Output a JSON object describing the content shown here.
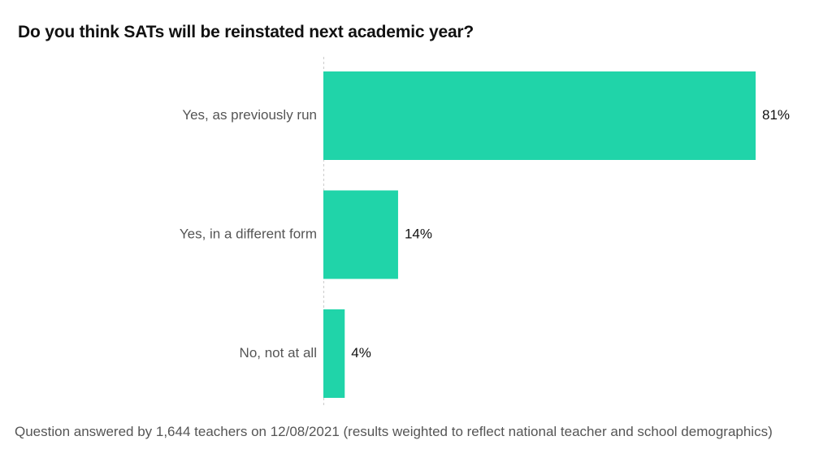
{
  "chart_data": {
    "type": "bar",
    "orientation": "horizontal",
    "title": "Do you think SATs will be reinstated next academic year?",
    "categories": [
      "Yes, as previously run",
      "Yes, in a different form",
      "No, not at all"
    ],
    "values": [
      81,
      14,
      4
    ],
    "value_labels": [
      "81%",
      "14%",
      "4%"
    ],
    "xlim": [
      0,
      81
    ],
    "grid": false,
    "legend": "none",
    "bar_color": "#20d4a9",
    "footnote": "Question answered by 1,644 teachers on 12/08/2021 (results weighted to reflect national teacher and school demographics)"
  }
}
